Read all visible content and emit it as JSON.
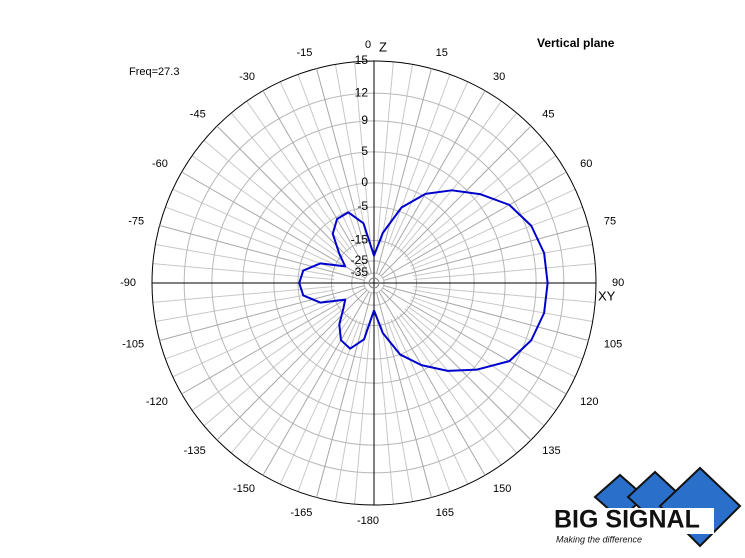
{
  "chart_data": {
    "type": "polar",
    "title": "Vertical plane",
    "annotation": "Freq=27.3",
    "axis_labels": {
      "vertical": "Z",
      "horizontal": "XY"
    },
    "theta": [
      -180,
      -170,
      -160,
      -150,
      -140,
      -130,
      -120,
      -110,
      -100,
      -90,
      -80,
      -70,
      -60,
      -50,
      -40,
      -30,
      -20,
      -10,
      0,
      10,
      20,
      30,
      40,
      50,
      60,
      70,
      80,
      90,
      100,
      110,
      120,
      130,
      140,
      150,
      160,
      170,
      180
    ],
    "series": [
      {
        "color": "#0000cc",
        "values": [
          -22,
          -10,
          -6.5,
          -7.5,
          -11,
          -16,
          -19,
          -10,
          -6,
          -5.3,
          -6,
          -10,
          -19,
          -14,
          -8,
          -5.5,
          -5.2,
          -9,
          -22,
          -12,
          -4,
          0.5,
          3.5,
          6,
          8.3,
          9.6,
          10.2,
          10.3,
          10.2,
          9.6,
          8.3,
          5.5,
          2.5,
          -1,
          -5,
          -12,
          -22
        ]
      }
    ],
    "rlim": [
      -35,
      15
    ],
    "rticks": [
      15,
      12,
      9,
      5,
      0,
      -5,
      -15,
      -25,
      -35
    ],
    "thetaticks": [
      0,
      15,
      30,
      45,
      60,
      75,
      90,
      105,
      120,
      135,
      150,
      165,
      -180,
      -165,
      -150,
      -135,
      -120,
      -105,
      -90,
      -75,
      -60,
      -45,
      -30,
      -15
    ]
  },
  "logo": {
    "name": "BIG SIGNAL",
    "tagline": "Making the difference"
  }
}
